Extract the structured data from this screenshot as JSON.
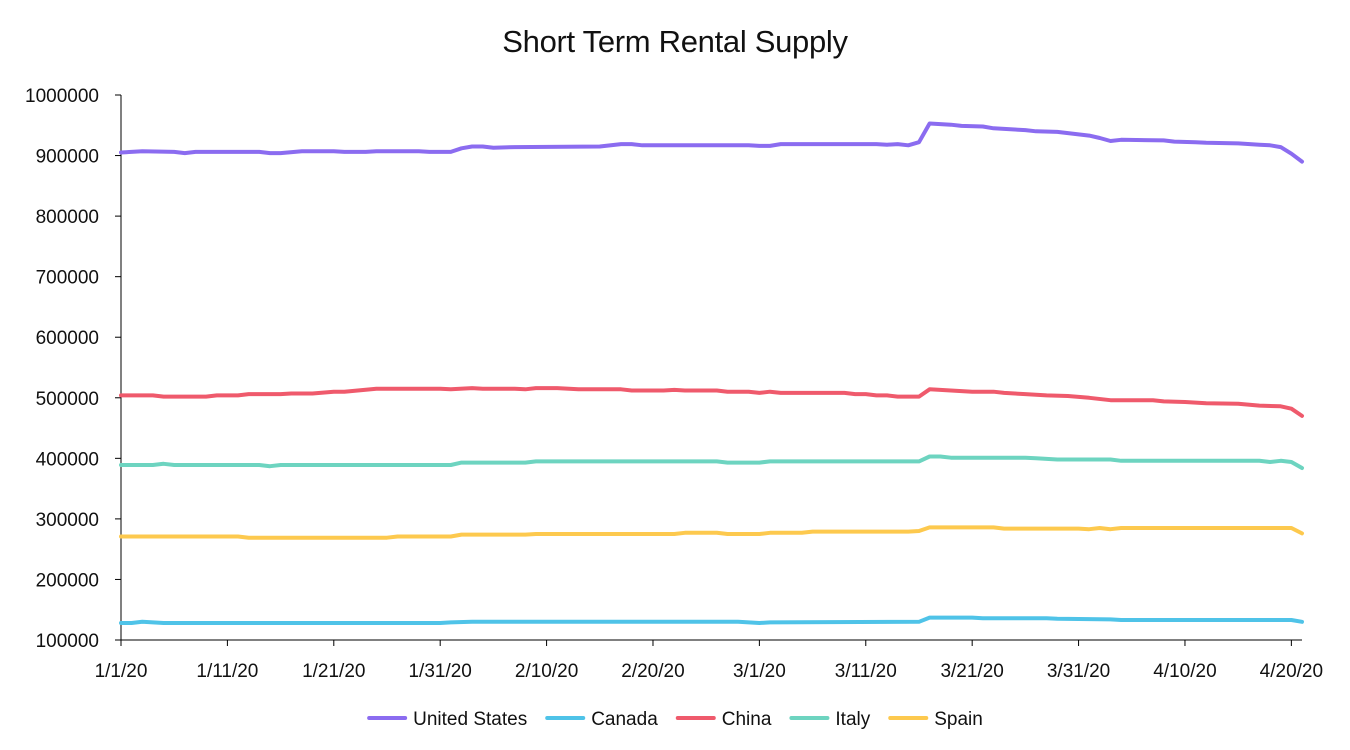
{
  "chart_data": {
    "type": "line",
    "title": "Short Term Rental Supply",
    "xlabel": "",
    "ylabel": "",
    "x_ticks": [
      "1/1/20",
      "1/11/20",
      "1/21/20",
      "1/31/20",
      "2/10/20",
      "2/20/20",
      "3/1/20",
      "3/11/20",
      "3/21/20",
      "3/31/20",
      "4/10/20",
      "4/20/20"
    ],
    "x_range": [
      "2020-01-01",
      "2020-04-21"
    ],
    "y_ticks": [
      "100000",
      "200000",
      "300000",
      "400000",
      "500000",
      "600000",
      "700000",
      "800000",
      "900000",
      "1000000"
    ],
    "ylim": [
      100000,
      1000000
    ],
    "grid": false,
    "legend_position": "bottom",
    "series": [
      {
        "name": "United States",
        "color": "#8b6cf0",
        "points": [
          [
            "2020-01-01",
            905000
          ],
          [
            "2020-01-03",
            907000
          ],
          [
            "2020-01-06",
            906000
          ],
          [
            "2020-01-07",
            904000
          ],
          [
            "2020-01-08",
            906000
          ],
          [
            "2020-01-14",
            906000
          ],
          [
            "2020-01-15",
            904000
          ],
          [
            "2020-01-16",
            904000
          ],
          [
            "2020-01-18",
            907000
          ],
          [
            "2020-01-21",
            907000
          ],
          [
            "2020-01-22",
            906000
          ],
          [
            "2020-01-24",
            906000
          ],
          [
            "2020-01-25",
            907000
          ],
          [
            "2020-01-29",
            907000
          ],
          [
            "2020-01-30",
            906000
          ],
          [
            "2020-01-31",
            906000
          ],
          [
            "2020-02-01",
            906000
          ],
          [
            "2020-02-02",
            912000
          ],
          [
            "2020-02-03",
            915000
          ],
          [
            "2020-02-04",
            915000
          ],
          [
            "2020-02-05",
            913000
          ],
          [
            "2020-02-07",
            914000
          ],
          [
            "2020-02-15",
            915000
          ],
          [
            "2020-02-17",
            919000
          ],
          [
            "2020-02-18",
            919000
          ],
          [
            "2020-02-19",
            917000
          ],
          [
            "2020-02-29",
            917000
          ],
          [
            "2020-03-01",
            916000
          ],
          [
            "2020-03-02",
            916000
          ],
          [
            "2020-03-03",
            919000
          ],
          [
            "2020-03-12",
            919000
          ],
          [
            "2020-03-13",
            918000
          ],
          [
            "2020-03-14",
            919000
          ],
          [
            "2020-03-15",
            917000
          ],
          [
            "2020-03-16",
            922000
          ],
          [
            "2020-03-17",
            953000
          ],
          [
            "2020-03-18",
            952000
          ],
          [
            "2020-03-19",
            951000
          ],
          [
            "2020-03-20",
            949000
          ],
          [
            "2020-03-22",
            948000
          ],
          [
            "2020-03-23",
            945000
          ],
          [
            "2020-03-24",
            944000
          ],
          [
            "2020-03-26",
            942000
          ],
          [
            "2020-03-27",
            940000
          ],
          [
            "2020-03-29",
            939000
          ],
          [
            "2020-04-01",
            933000
          ],
          [
            "2020-04-02",
            929000
          ],
          [
            "2020-04-03",
            924000
          ],
          [
            "2020-04-04",
            926000
          ],
          [
            "2020-04-08",
            925000
          ],
          [
            "2020-04-09",
            923000
          ],
          [
            "2020-04-11",
            922000
          ],
          [
            "2020-04-12",
            921000
          ],
          [
            "2020-04-15",
            920000
          ],
          [
            "2020-04-17",
            918000
          ],
          [
            "2020-04-18",
            917000
          ],
          [
            "2020-04-19",
            914000
          ],
          [
            "2020-04-20",
            903000
          ],
          [
            "2020-04-21",
            890000
          ]
        ]
      },
      {
        "name": "Canada",
        "color": "#4fc3e8",
        "points": [
          [
            "2020-01-01",
            128000
          ],
          [
            "2020-01-02",
            128000
          ],
          [
            "2020-01-03",
            130000
          ],
          [
            "2020-01-04",
            129000
          ],
          [
            "2020-01-05",
            128000
          ],
          [
            "2020-01-31",
            128000
          ],
          [
            "2020-02-01",
            129000
          ],
          [
            "2020-02-03",
            130000
          ],
          [
            "2020-02-28",
            130000
          ],
          [
            "2020-03-01",
            128000
          ],
          [
            "2020-03-02",
            129000
          ],
          [
            "2020-03-16",
            130000
          ],
          [
            "2020-03-17",
            137000
          ],
          [
            "2020-03-21",
            137000
          ],
          [
            "2020-03-22",
            136000
          ],
          [
            "2020-03-28",
            136000
          ],
          [
            "2020-03-29",
            135000
          ],
          [
            "2020-04-03",
            134000
          ],
          [
            "2020-04-04",
            133000
          ],
          [
            "2020-04-20",
            133000
          ],
          [
            "2020-04-21",
            130000
          ]
        ]
      },
      {
        "name": "China",
        "color": "#ef5a6c",
        "points": [
          [
            "2020-01-01",
            504000
          ],
          [
            "2020-01-04",
            504000
          ],
          [
            "2020-01-05",
            502000
          ],
          [
            "2020-01-09",
            502000
          ],
          [
            "2020-01-10",
            504000
          ],
          [
            "2020-01-12",
            504000
          ],
          [
            "2020-01-13",
            506000
          ],
          [
            "2020-01-16",
            506000
          ],
          [
            "2020-01-17",
            507000
          ],
          [
            "2020-01-19",
            507000
          ],
          [
            "2020-01-21",
            510000
          ],
          [
            "2020-01-22",
            510000
          ],
          [
            "2020-01-25",
            515000
          ],
          [
            "2020-01-31",
            515000
          ],
          [
            "2020-02-01",
            514000
          ],
          [
            "2020-02-03",
            516000
          ],
          [
            "2020-02-04",
            515000
          ],
          [
            "2020-02-07",
            515000
          ],
          [
            "2020-02-08",
            514000
          ],
          [
            "2020-02-09",
            516000
          ],
          [
            "2020-02-11",
            516000
          ],
          [
            "2020-02-13",
            514000
          ],
          [
            "2020-02-17",
            514000
          ],
          [
            "2020-02-18",
            512000
          ],
          [
            "2020-02-21",
            512000
          ],
          [
            "2020-02-22",
            513000
          ],
          [
            "2020-02-23",
            512000
          ],
          [
            "2020-02-26",
            512000
          ],
          [
            "2020-02-27",
            510000
          ],
          [
            "2020-02-29",
            510000
          ],
          [
            "2020-03-01",
            508000
          ],
          [
            "2020-03-02",
            510000
          ],
          [
            "2020-03-03",
            508000
          ],
          [
            "2020-03-09",
            508000
          ],
          [
            "2020-03-10",
            506000
          ],
          [
            "2020-03-11",
            506000
          ],
          [
            "2020-03-12",
            504000
          ],
          [
            "2020-03-13",
            504000
          ],
          [
            "2020-03-14",
            502000
          ],
          [
            "2020-03-16",
            502000
          ],
          [
            "2020-03-17",
            514000
          ],
          [
            "2020-03-19",
            512000
          ],
          [
            "2020-03-21",
            510000
          ],
          [
            "2020-03-23",
            510000
          ],
          [
            "2020-03-24",
            508000
          ],
          [
            "2020-03-26",
            506000
          ],
          [
            "2020-03-28",
            504000
          ],
          [
            "2020-03-30",
            503000
          ],
          [
            "2020-04-01",
            500000
          ],
          [
            "2020-04-03",
            496000
          ],
          [
            "2020-04-07",
            496000
          ],
          [
            "2020-04-08",
            494000
          ],
          [
            "2020-04-10",
            493000
          ],
          [
            "2020-04-12",
            491000
          ],
          [
            "2020-04-15",
            490000
          ],
          [
            "2020-04-17",
            487000
          ],
          [
            "2020-04-19",
            486000
          ],
          [
            "2020-04-20",
            482000
          ],
          [
            "2020-04-21",
            470000
          ]
        ]
      },
      {
        "name": "Italy",
        "color": "#6dd4c0",
        "points": [
          [
            "2020-01-01",
            389000
          ],
          [
            "2020-01-04",
            389000
          ],
          [
            "2020-01-05",
            391000
          ],
          [
            "2020-01-06",
            389000
          ],
          [
            "2020-01-14",
            389000
          ],
          [
            "2020-01-15",
            387000
          ],
          [
            "2020-01-16",
            389000
          ],
          [
            "2020-01-31",
            389000
          ],
          [
            "2020-02-01",
            389000
          ],
          [
            "2020-02-02",
            393000
          ],
          [
            "2020-02-08",
            393000
          ],
          [
            "2020-02-09",
            395000
          ],
          [
            "2020-02-26",
            395000
          ],
          [
            "2020-02-27",
            393000
          ],
          [
            "2020-03-01",
            393000
          ],
          [
            "2020-03-02",
            395000
          ],
          [
            "2020-03-16",
            395000
          ],
          [
            "2020-03-17",
            403000
          ],
          [
            "2020-03-18",
            403000
          ],
          [
            "2020-03-19",
            401000
          ],
          [
            "2020-03-26",
            401000
          ],
          [
            "2020-03-27",
            400000
          ],
          [
            "2020-03-29",
            398000
          ],
          [
            "2020-04-03",
            398000
          ],
          [
            "2020-04-04",
            396000
          ],
          [
            "2020-04-17",
            396000
          ],
          [
            "2020-04-18",
            394000
          ],
          [
            "2020-04-19",
            396000
          ],
          [
            "2020-04-20",
            394000
          ],
          [
            "2020-04-21",
            384000
          ]
        ]
      },
      {
        "name": "Spain",
        "color": "#fdc94e",
        "points": [
          [
            "2020-01-01",
            271000
          ],
          [
            "2020-01-12",
            271000
          ],
          [
            "2020-01-13",
            269000
          ],
          [
            "2020-01-26",
            269000
          ],
          [
            "2020-01-27",
            271000
          ],
          [
            "2020-01-31",
            271000
          ],
          [
            "2020-02-01",
            271000
          ],
          [
            "2020-02-02",
            274000
          ],
          [
            "2020-02-08",
            274000
          ],
          [
            "2020-02-09",
            275000
          ],
          [
            "2020-02-22",
            275000
          ],
          [
            "2020-02-23",
            277000
          ],
          [
            "2020-02-26",
            277000
          ],
          [
            "2020-02-27",
            275000
          ],
          [
            "2020-03-01",
            275000
          ],
          [
            "2020-03-02",
            277000
          ],
          [
            "2020-03-05",
            277000
          ],
          [
            "2020-03-06",
            279000
          ],
          [
            "2020-03-15",
            279000
          ],
          [
            "2020-03-16",
            280000
          ],
          [
            "2020-03-17",
            286000
          ],
          [
            "2020-03-23",
            286000
          ],
          [
            "2020-03-24",
            284000
          ],
          [
            "2020-03-31",
            284000
          ],
          [
            "2020-04-01",
            283000
          ],
          [
            "2020-04-02",
            285000
          ],
          [
            "2020-04-03",
            283000
          ],
          [
            "2020-04-04",
            285000
          ],
          [
            "2020-04-20",
            285000
          ],
          [
            "2020-04-21",
            276000
          ]
        ]
      }
    ]
  }
}
